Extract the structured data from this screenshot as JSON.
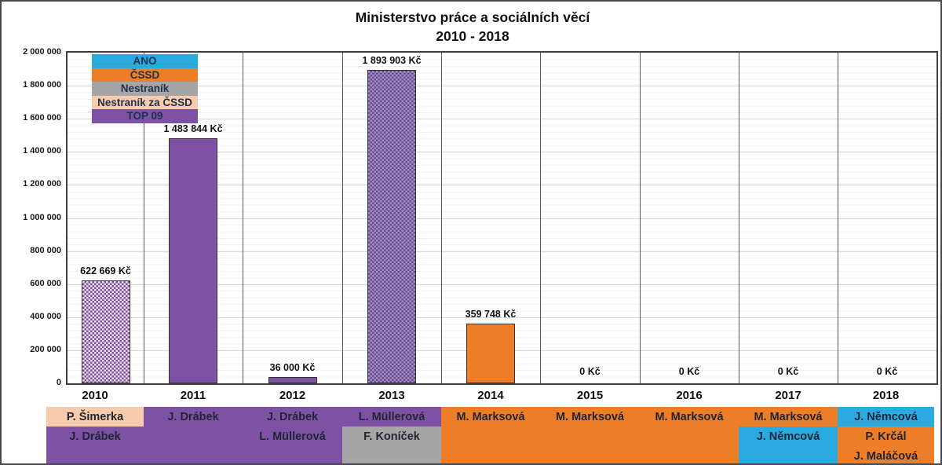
{
  "title": {
    "line1": "Ministerstvo práce a sociálních věcí",
    "line2": "2010 - 2018"
  },
  "colors": {
    "ano": "#29ABE2",
    "cssd": "#EE7D28",
    "nestranik": "#A6A6A6",
    "nestranik_za_cssd": "#F8CBAD",
    "top09": "#7D52A5",
    "top09_dark": "#6B4E94",
    "top09_light": "#A08BC0",
    "checker_bg_light": "#EFDFEA",
    "name_text": "#1F2533",
    "legend_text": "#1F3050",
    "column_line": "#595959",
    "grid_major": "#d6d6d6",
    "grid_minor": "#f0f0f0"
  },
  "legend": {
    "items": [
      {
        "label": "ANO",
        "party": "ano"
      },
      {
        "label": "ČSSD",
        "party": "cssd"
      },
      {
        "label": "Nestraník",
        "party": "nestranik"
      },
      {
        "label": "Nestraník za ČSSD",
        "party": "nestranik_za_cssd"
      },
      {
        "label": "TOP 09",
        "party": "top09"
      }
    ]
  },
  "chart_data": {
    "type": "bar",
    "title": "Ministerstvo práce a sociálních věcí 2010 - 2018",
    "categories": [
      "2010",
      "2011",
      "2012",
      "2013",
      "2014",
      "2015",
      "2016",
      "2017",
      "2018"
    ],
    "values": [
      622669,
      1483844,
      36000,
      1893903,
      359748,
      0,
      0,
      0,
      0
    ],
    "value_labels": [
      "622 669 Kč",
      "1 483 844 Kč",
      "36 000 Kč",
      "1 893 903 Kč",
      "359 748 Kč",
      "0 Kč",
      "0 Kč",
      "0 Kč",
      "0 Kč"
    ],
    "bar_fills": [
      "checker-light",
      "solid-top09",
      "solid-top09",
      "checker-dark",
      "solid-cssd",
      "none",
      "none",
      "none",
      "none"
    ],
    "bar_fill_parties": [
      "top09+nestranik_za_cssd",
      "top09",
      "top09",
      "top09",
      "cssd",
      "none",
      "none",
      "none",
      "none"
    ],
    "xlabel": "",
    "ylabel": "",
    "ylim": [
      0,
      2000000
    ],
    "ytick_step": 200000,
    "ytick_labels": [
      "0",
      "200 000",
      "400 000",
      "600 000",
      "800 000",
      "1 000 000",
      "1 200 000",
      "1 400 000",
      "1 600 000",
      "1 800 000",
      "2 000 000"
    ],
    "grid": "horizontal major + minor",
    "legend_position": "inside top-left"
  },
  "ministers_table": {
    "columns": [
      {
        "year": "2010",
        "cells": [
          {
            "name": "P. Šimerka",
            "party": "nestranik_za_cssd"
          },
          {
            "name": "J. Drábek",
            "party": "top09"
          },
          {
            "name": "",
            "party": "top09"
          }
        ]
      },
      {
        "year": "2011",
        "cells": [
          {
            "name": "J. Drábek",
            "party": "top09"
          },
          {
            "name": "",
            "party": "top09"
          },
          {
            "name": "",
            "party": "top09"
          }
        ]
      },
      {
        "year": "2012",
        "cells": [
          {
            "name": "J. Drábek",
            "party": "top09"
          },
          {
            "name": "L. Müllerová",
            "party": "top09"
          },
          {
            "name": "",
            "party": "top09"
          }
        ]
      },
      {
        "year": "2013",
        "cells": [
          {
            "name": "L. Müllerová",
            "party": "top09"
          },
          {
            "name": "F. Koníček",
            "party": "nestranik"
          },
          {
            "name": "",
            "party": "nestranik"
          }
        ]
      },
      {
        "year": "2014",
        "cells": [
          {
            "name": "M. Marksová",
            "party": "cssd"
          },
          {
            "name": "",
            "party": "cssd"
          },
          {
            "name": "",
            "party": "cssd"
          }
        ]
      },
      {
        "year": "2015",
        "cells": [
          {
            "name": "M. Marksová",
            "party": "cssd"
          },
          {
            "name": "",
            "party": "cssd"
          },
          {
            "name": "",
            "party": "cssd"
          }
        ]
      },
      {
        "year": "2016",
        "cells": [
          {
            "name": "M. Marksová",
            "party": "cssd"
          },
          {
            "name": "",
            "party": "cssd"
          },
          {
            "name": "",
            "party": "cssd"
          }
        ]
      },
      {
        "year": "2017",
        "cells": [
          {
            "name": "M. Marksová",
            "party": "cssd"
          },
          {
            "name": "J. Němcová",
            "party": "ano"
          },
          {
            "name": "",
            "party": "ano"
          }
        ]
      },
      {
        "year": "2018",
        "cells": [
          {
            "name": "J. Němcová",
            "party": "ano"
          },
          {
            "name": "P. Krčál",
            "party": "cssd"
          },
          {
            "name": "J. Maláčová",
            "party": "cssd"
          }
        ]
      }
    ]
  }
}
